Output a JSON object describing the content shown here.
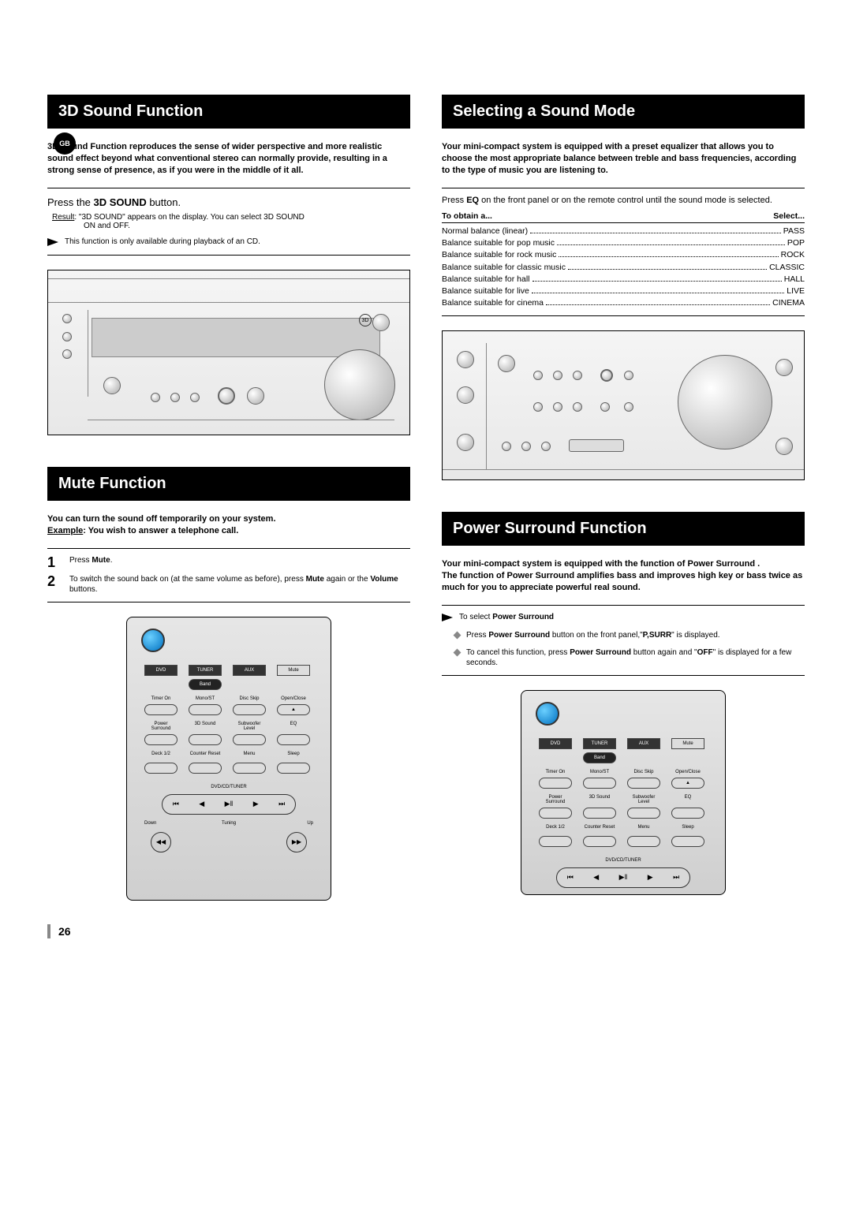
{
  "badge": "GB",
  "page_number": "26",
  "left": {
    "s1": {
      "title": "3D Sound Function",
      "intro": "3D Sound Function reproduces the sense of wider perspective and more realistic sound effect beyond what conventional stereo can normally provide, resulting in a strong sense of presence, as if you were in the middle of it all.",
      "instruction_pre": "Press the ",
      "instruction_bold": "3D SOUND",
      "instruction_post": " button.",
      "result_label": "Result",
      "result_text": ": \"3D SOUND\" appears on the display. You can select 3D SOUND",
      "result_cont": "ON and OFF.",
      "note": "This function is only available during playback of an CD."
    },
    "s2": {
      "title": "Mute Function",
      "intro1": "You can turn the sound off temporarily on your system.",
      "intro2_pre": "Example",
      "intro2_post": ": You wish to answer a telephone call.",
      "steps": [
        {
          "n": "1",
          "pre": "Press ",
          "b": "Mute",
          "post": "."
        },
        {
          "n": "2",
          "pre": "To switch the sound back on (at the same volume as before), press ",
          "b": "Mute",
          "mid": " again or the ",
          "b2": "Volume",
          "post": " buttons."
        }
      ]
    }
  },
  "right": {
    "s1": {
      "title": "Selecting a Sound Mode",
      "intro": "Your mini-compact system is equipped with a preset equalizer that allows you to choose the most appropriate balance between treble and bass frequencies, according to the type of music you are listening to.",
      "instr_pre": "Press ",
      "instr_b": "EQ",
      "instr_post": " on the front panel or on the remote control until the sound mode is selected.",
      "table": {
        "head_left": "To obtain a...",
        "head_right": "Select...",
        "rows": [
          {
            "l": "Normal balance (linear)",
            "r": "PASS"
          },
          {
            "l": "Balance suitable for pop music",
            "r": "POP"
          },
          {
            "l": "Balance suitable for rock music",
            "r": "ROCK"
          },
          {
            "l": "Balance suitable for classic music",
            "r": "CLASSIC"
          },
          {
            "l": "Balance suitable for hall",
            "r": "HALL"
          },
          {
            "l": "Balance suitable for live",
            "r": "LIVE"
          },
          {
            "l": "Balance suitable for cinema",
            "r": "CINEMA"
          }
        ]
      }
    },
    "s2": {
      "title": "Power Surround Function",
      "intro": "Your mini-compact system is equipped with the function of Power Surround .\nThe function of Power Surround amplifies bass and improves high key or bass twice as much for you to appreciate powerful real sound.",
      "note_pre": "To select ",
      "note_b": "Power Surround",
      "bullets": [
        {
          "pre": "Press ",
          "b": "Power Surround",
          "mid": " button on the front panel,\"",
          "b2": "P,SURR",
          "post": "\" is displayed."
        },
        {
          "pre": "To cancel this function, press ",
          "b": "Power Surround",
          "mid": "  button again and \"",
          "b2": "OFF",
          "post": "\" is displayed for a few seconds."
        }
      ]
    }
  },
  "remote": {
    "row1": [
      "DVD",
      "TUNER",
      "AUX",
      "Mute"
    ],
    "row1_sub": "Band",
    "row2_labels": [
      "Timer On",
      "Mono/ST",
      "Disc Skip",
      "Open/Close"
    ],
    "row3_labels": [
      "Power Surround",
      "3D Sound",
      "Subwoofer Level",
      "EQ"
    ],
    "row4_labels": [
      "Deck 1/2",
      "Counter Reset",
      "Menu",
      "Sleep"
    ],
    "nav_label": "DVD/CD/TUNER",
    "tuning_left": "Down",
    "tuning_mid": "Tuning",
    "tuning_right": "Up"
  }
}
